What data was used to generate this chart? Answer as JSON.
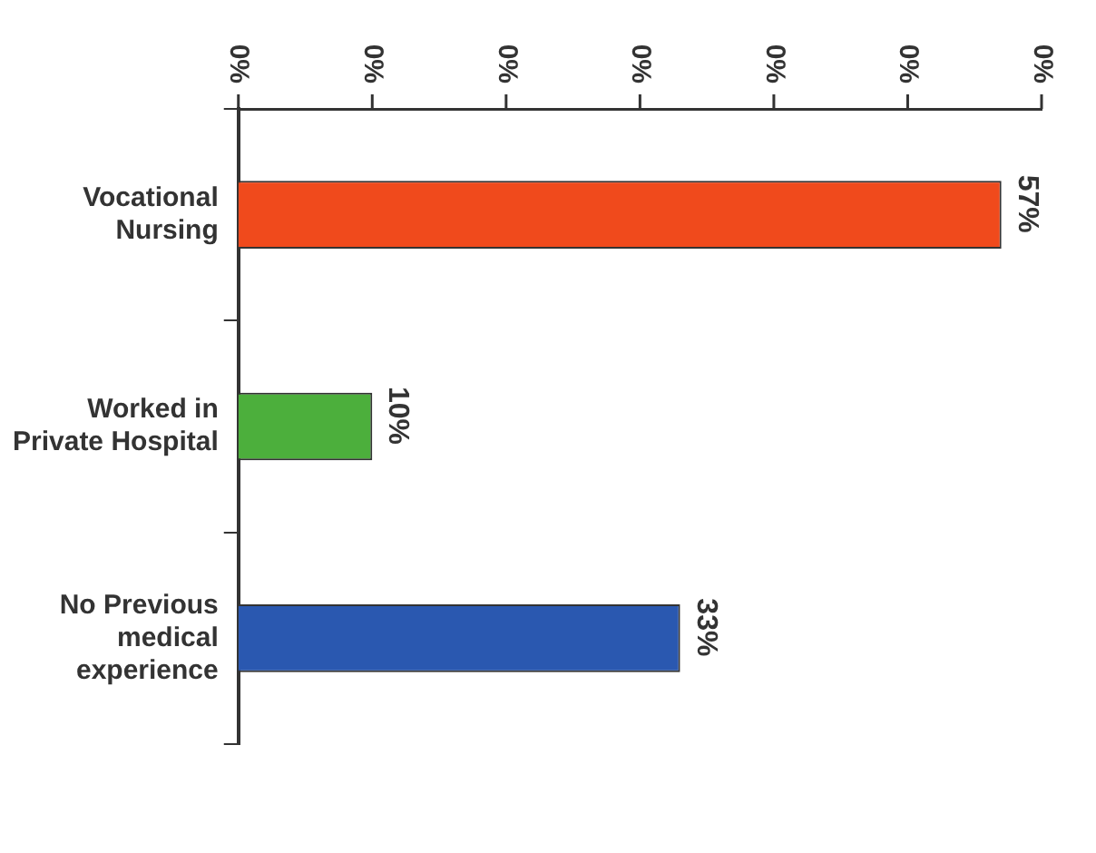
{
  "chart_data": {
    "type": "bar",
    "orientation": "horizontal",
    "categories": [
      "Vocational Nursing",
      "Worked in Private Hospital",
      "No Previous medical experience"
    ],
    "values": [
      57,
      10,
      33
    ],
    "colors": [
      "#f04a1c",
      "#4caf3c",
      "#2a58b0"
    ],
    "value_labels": [
      "57%",
      "10%",
      "33%"
    ],
    "annotations": [
      "0%",
      "0%",
      "0%",
      "0%",
      "0%",
      "0%",
      "0%"
    ],
    "grid": false,
    "legend": false
  }
}
